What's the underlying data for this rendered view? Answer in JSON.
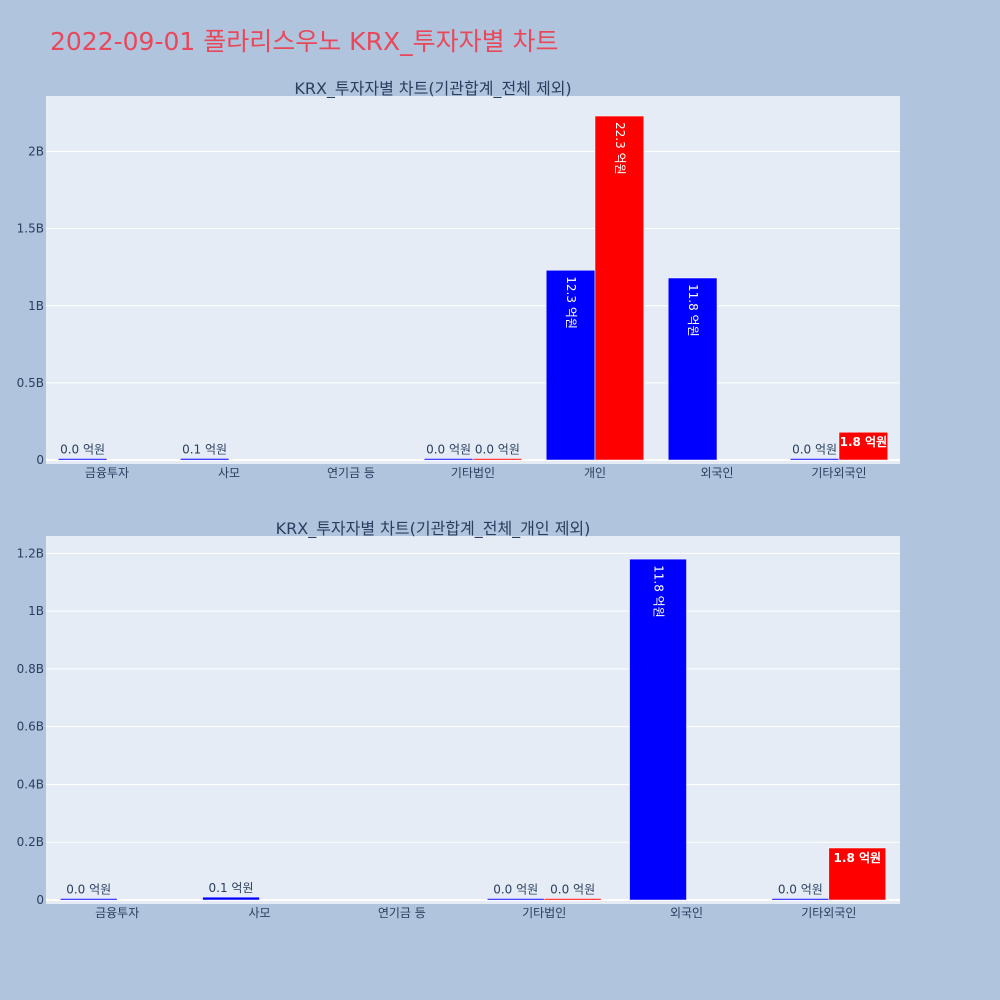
{
  "page": {
    "title": "2022-09-01 폴라리스우노 KRX_투자자별 차트"
  },
  "colors": {
    "background": "#b0c4de",
    "plot_bg": "#e5ecf6",
    "buy": "#0000ff",
    "sell": "#ff0000",
    "title": "#e8485a",
    "text": "#2a3f5f"
  },
  "chart_data": [
    {
      "type": "bar",
      "title": "KRX_투자자별 차트(기관합계_전체 제외)",
      "categories": [
        "금융투자",
        "사모",
        "연기금 등",
        "기타법인",
        "개인",
        "외국인",
        "기타외국인"
      ],
      "ylim": [
        0,
        2.36
      ],
      "yunit": "B",
      "yticks": [
        0,
        0.5,
        1,
        1.5,
        2
      ],
      "ytick_labels": [
        "0",
        "0.5B",
        "1B",
        "1.5B",
        "2B"
      ],
      "grid": true,
      "series": [
        {
          "color": "#0000ff",
          "values": [
            0.003,
            0.01,
            null,
            0.002,
            1.23,
            1.18,
            0.001
          ],
          "labels": [
            "0.0 억원",
            "0.1 억원",
            "",
            "0.0 억원",
            "12.3 억원",
            "11.8 억원",
            "0.0 억원"
          ]
        },
        {
          "color": "#ff0000",
          "values": [
            null,
            null,
            null,
            0.001,
            2.23,
            null,
            0.18
          ],
          "labels": [
            "",
            "",
            "",
            "0.0 억원",
            "22.3 억원",
            "",
            "1.8 억원"
          ]
        }
      ]
    },
    {
      "type": "bar",
      "title": "KRX_투자자별 차트(기관합계_전체_개인 제외)",
      "categories": [
        "금융투자",
        "사모",
        "연기금 등",
        "기타법인",
        "외국인",
        "기타외국인"
      ],
      "ylim": [
        0,
        1.26
      ],
      "yunit": "B",
      "yticks": [
        0,
        0.2,
        0.4,
        0.6,
        0.8,
        1,
        1.2
      ],
      "ytick_labels": [
        "0",
        "0.2B",
        "0.4B",
        "0.6B",
        "0.8B",
        "1B",
        "1.2B"
      ],
      "grid": true,
      "series": [
        {
          "color": "#0000ff",
          "values": [
            0.003,
            0.01,
            null,
            0.002,
            1.18,
            0.001
          ],
          "labels": [
            "0.0 억원",
            "0.1 억원",
            "",
            "0.0 억원",
            "11.8 억원",
            "0.0 억원"
          ]
        },
        {
          "color": "#ff0000",
          "values": [
            null,
            null,
            null,
            0.001,
            null,
            0.18
          ],
          "labels": [
            "",
            "",
            "",
            "0.0 억원",
            "",
            "1.8 억원"
          ]
        }
      ]
    }
  ]
}
